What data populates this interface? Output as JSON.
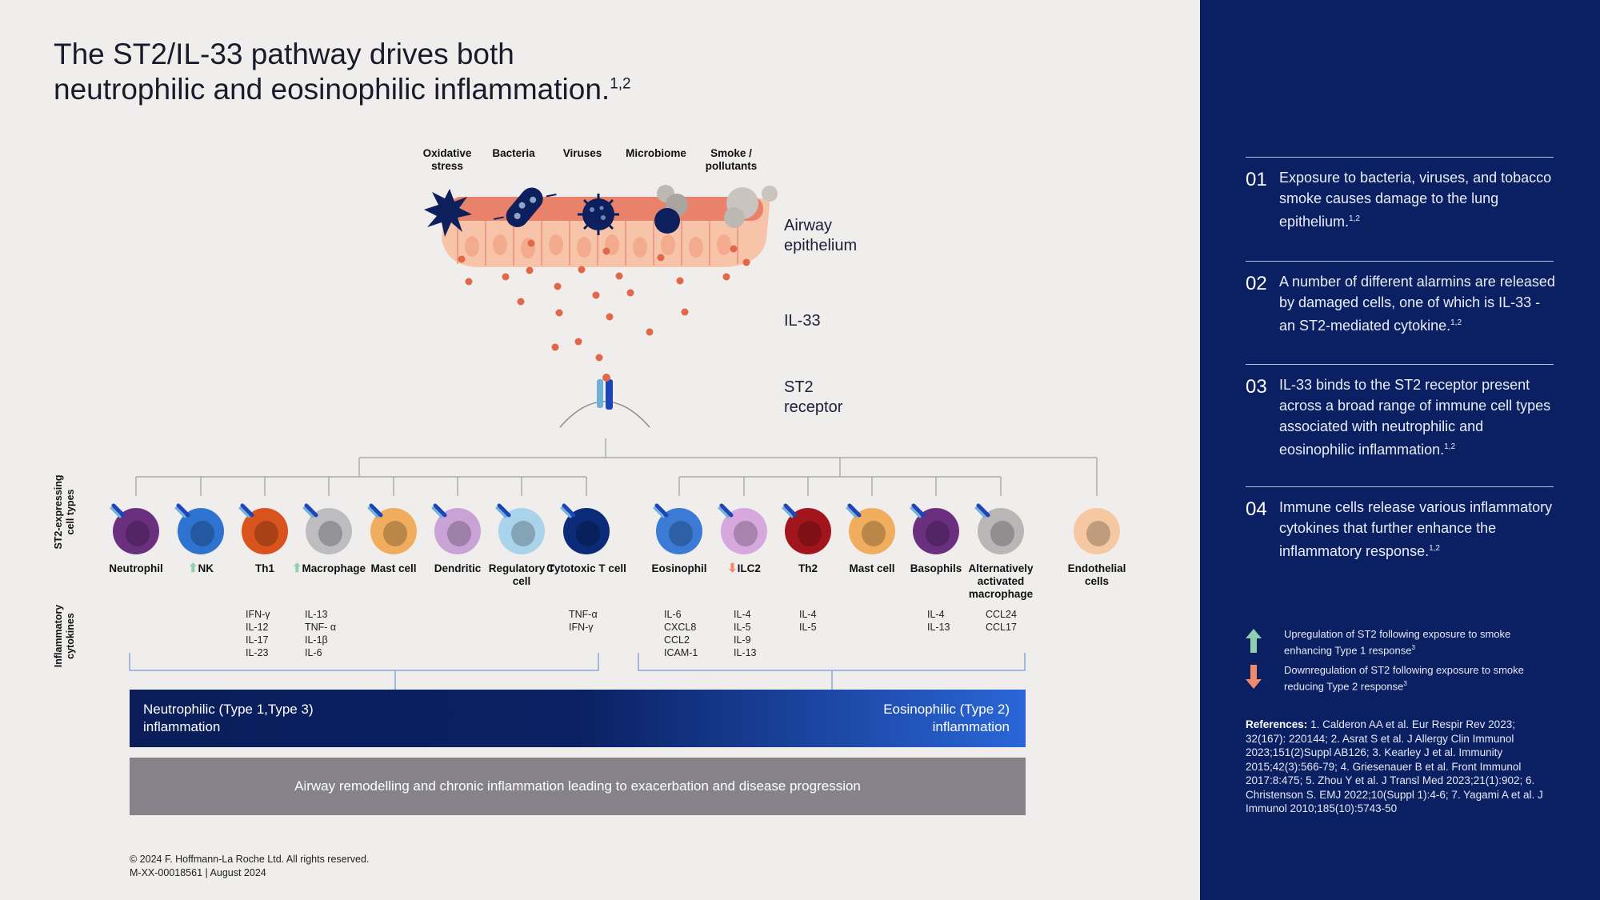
{
  "title": {
    "line1": "The ST2/IL-33 pathway drives both",
    "line2": "neutrophilic and eosinophilic inflammation.",
    "sup": "1,2"
  },
  "triggers": [
    "Oxidative stress",
    "Bacteria",
    "Viruses",
    "Microbiome",
    "Smoke / pollutants"
  ],
  "labels": {
    "epithelium": "Airway epithelium",
    "il33": "IL-33",
    "st2": "ST2 receptor"
  },
  "side_labels": {
    "cell_types": "ST2-expressing cell types",
    "cytokines": "Inflammatory cytokines"
  },
  "cells": [
    {
      "label": "Neutrophil",
      "color": "#6b2f80",
      "arrow": ""
    },
    {
      "label": "NK",
      "color": "#2f73d0",
      "arrow": "up"
    },
    {
      "label": "Th1",
      "color": "#d9541d",
      "arrow": ""
    },
    {
      "label": "Macrophage",
      "color": "#bdbdc0",
      "arrow": "up"
    },
    {
      "label": "Mast cell",
      "color": "#f0ad5e",
      "arrow": ""
    },
    {
      "label": "Dendritic",
      "color": "#caa3d6",
      "arrow": ""
    },
    {
      "label": "Regulatory T cell",
      "color": "#a9d3ea",
      "arrow": ""
    },
    {
      "label": "Cytotoxic T cell",
      "color": "#0b2b78",
      "arrow": ""
    },
    {
      "label": "Eosinophil",
      "color": "#3b7bd6",
      "arrow": ""
    },
    {
      "label": "ILC2",
      "color": "#d6a8de",
      "arrow": "down"
    },
    {
      "label": "Th2",
      "color": "#a3151d",
      "arrow": ""
    },
    {
      "label": "Mast cell",
      "color": "#f0ad5e",
      "arrow": ""
    },
    {
      "label": "Basophils",
      "color": "#6b2f80",
      "arrow": ""
    },
    {
      "label": "Alternatively activated macrophage",
      "color": "#b9b6b6",
      "arrow": ""
    },
    {
      "label": "Endothelial cells",
      "color": "#f6c8a2",
      "arrow": ""
    }
  ],
  "cytokines": [
    {
      "lines": [
        "IFN-γ",
        "IL-12",
        "IL-17",
        "IL-23"
      ]
    },
    {
      "lines": [
        "IL-13",
        "TNF- α",
        "IL-1β",
        "IL-6"
      ]
    },
    {
      "lines": [
        "TNF-α",
        "IFN-γ"
      ]
    },
    {
      "lines": [
        "IL-6",
        "CXCL8",
        "CCL2",
        "ICAM-1"
      ]
    },
    {
      "lines": [
        "IL-4",
        "IL-5",
        "IL-9",
        "IL-13"
      ]
    },
    {
      "lines": [
        "IL-4",
        "IL-5"
      ]
    },
    {
      "lines": [
        "IL-4",
        "IL-13"
      ]
    },
    {
      "lines": [
        "CCL24",
        "CCL17"
      ]
    }
  ],
  "bars": {
    "neutrophilic": "Neutrophilic (Type 1,Type 3) inflammation",
    "eosinophilic": "Eosinophilic (Type 2) inflammation",
    "remodelling": "Airway remodelling and chronic inflammation leading to exacerbation and disease progression"
  },
  "footer": {
    "copyright": "© 2024 F. Hoffmann-La Roche Ltd. All rights reserved.",
    "code": "M-XX-00018561 | August 2024"
  },
  "steps": [
    {
      "num": "01",
      "text": "Exposure to bacteria, viruses, and tobacco smoke causes damage to the lung epithelium.",
      "sup": "1,2"
    },
    {
      "num": "02",
      "text": "A number of different alarmins are released by damaged cells, one of which is IL-33 - an ST2-mediated cytokine.",
      "sup": "1,2"
    },
    {
      "num": "03",
      "text": "IL-33 binds to the ST2 receptor present across a broad range of  immune cell types associated with neutrophilic and eosinophilic inflammation.",
      "sup": "1,2"
    },
    {
      "num": "04",
      "text": "Immune cells release various inflammatory cytokines that further enhance the inflammatory response.",
      "sup": "1,2"
    }
  ],
  "legend": {
    "up": "Upregulation of ST2 following exposure to smoke enhancing Type 1 response",
    "up_sup": "3",
    "down": "Downregulation of ST2 following exposure to smoke reducing Type 2 response",
    "down_sup": "3"
  },
  "references": {
    "heading": "References:",
    "text": "1. Calderon AA et al. Eur Respir Rev 2023; 32(167): 220144; 2. Asrat S et al. J Allergy Clin Immunol 2023;151(2)Suppl AB126; 3. Kearley J et al. Immunity 2015;42(3):566-79; 4. Griesenauer B et al. Front Immunol 2017:8:475; 5. Zhou Y et al. J Transl Med 2023;21(1):902; 6. Christenson S. EMJ 2022;10(Suppl 1):4-6; 7. Yagami A et al. J Immunol 2010;185(10):5743-50"
  },
  "colors": {
    "panel": "#0b1f63",
    "up_arrow": "#8fcfb0",
    "down_arrow": "#ef8a6a",
    "il33_dot": "#e0674a"
  }
}
